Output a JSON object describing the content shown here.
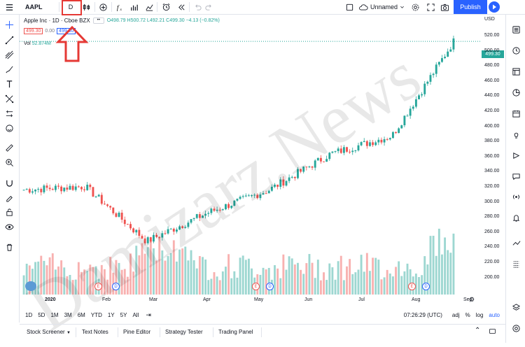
{
  "toolbar": {
    "symbol": "AAPL",
    "interval": "D",
    "layout_name": "Unnamed",
    "publish_label": "Publish"
  },
  "legend": {
    "title": "Apple Inc · 1D · Cboe BZX",
    "ohlc": "O498.79 H500.72 L492.21 C499.30 −4.13 (−0.82%)",
    "bid": "499.30",
    "spread": "0.00",
    "ask": "499.30",
    "vol_label": "Vol",
    "vol_value": "52.874M"
  },
  "price_axis": {
    "currency": "USD",
    "labels": [
      "520.00",
      "500.00",
      "480.00",
      "460.00",
      "440.00",
      "420.00",
      "400.00",
      "380.00",
      "360.00",
      "340.00",
      "320.00",
      "300.00",
      "280.00",
      "260.00",
      "240.00",
      "220.00",
      "200.00"
    ],
    "last_price": "499.30"
  },
  "time_axis": {
    "labels": [
      "2020",
      "Feb",
      "Mar",
      "Apr",
      "May",
      "Jun",
      "Jul",
      "Aug",
      "Sep"
    ]
  },
  "timebar": {
    "ranges": [
      "1D",
      "5D",
      "1M",
      "3M",
      "6M",
      "YTD",
      "1Y",
      "5Y",
      "All"
    ],
    "clock": "07:26:29 (UTC)",
    "adj": "adj",
    "percent": "%",
    "log": "log",
    "auto": "auto"
  },
  "bottom_tabs": [
    "Stock Screener",
    "Text Notes",
    "Pine Editor",
    "Strategy Tester",
    "Trading Panel"
  ],
  "events": [
    "E",
    "D",
    "E",
    "D",
    "E",
    "D",
    "E",
    "D"
  ],
  "watermark": "Damizarz.News",
  "colors": {
    "up": "#26a69a",
    "down": "#ef5350",
    "accent": "#2962ff"
  },
  "chart_data": {
    "type": "candlestick",
    "x": [
      "2020-01",
      "2020-02",
      "2020-03",
      "2020-04",
      "2020-05",
      "2020-06",
      "2020-07",
      "2020-08"
    ],
    "close": [
      318,
      322,
      255,
      290,
      318,
      362,
      384,
      499
    ],
    "ylim": [
      190,
      525
    ]
  }
}
